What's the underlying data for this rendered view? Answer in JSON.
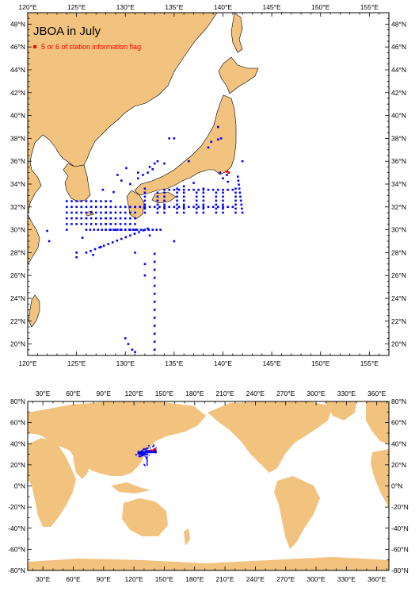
{
  "top_map": {
    "title": "JBOA in July",
    "legend": {
      "label": "5 or 6 of station information flag",
      "color": "#ff0000"
    },
    "lon_range": [
      120,
      157
    ],
    "lat_range": [
      19,
      49
    ],
    "lon_tick_labels": [
      "120°E",
      "125°E",
      "130°E",
      "135°E",
      "140°E",
      "145°E",
      "150°E",
      "155°E"
    ],
    "lat_tick_labels": [
      "20°N",
      "22°N",
      "24°N",
      "26°N",
      "28°N",
      "30°N",
      "32°N",
      "34°N",
      "36°N",
      "38°N",
      "40°N",
      "42°N",
      "44°N",
      "46°N",
      "48°N"
    ],
    "land_color": "#f2c27f",
    "ocean_color": "#ffffff",
    "station_color": "#0000ff"
  },
  "bottom_map": {
    "lon_range": [
      15,
      372
    ],
    "lat_range": [
      -80,
      80
    ],
    "lon_tick_labels": [
      "30°E",
      "60°E",
      "90°E",
      "120°E",
      "150°E",
      "180°E",
      "210°E",
      "240°E",
      "270°E",
      "300°E",
      "330°E",
      "360°E"
    ],
    "lat_tick_labels": [
      "80°N",
      "60°N",
      "40°N",
      "20°N",
      "0°N",
      "-20°N",
      "-40°N",
      "-60°N",
      "-80°N"
    ],
    "land_color": "#f2c27f",
    "station_color": "#0000ff",
    "flag_color": "#ff0000"
  }
}
